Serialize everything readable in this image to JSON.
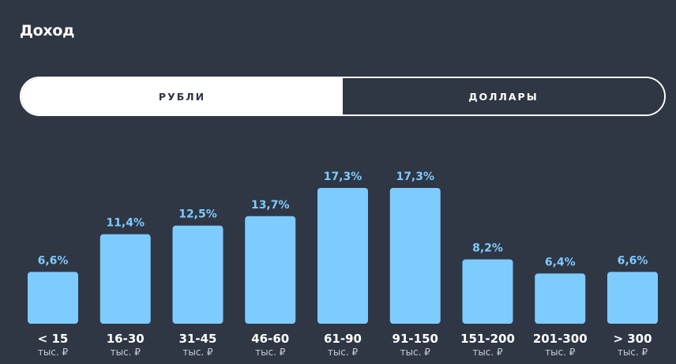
{
  "title": "Доход",
  "currency_toggle": {
    "options": [
      "РУБЛИ",
      "ДОЛЛАРЫ"
    ],
    "selected": "РУБЛИ"
  },
  "colors": {
    "background": "#2f3644",
    "bar": "#7ecbfd",
    "label": "#7ecbfd",
    "text": "#ffffff",
    "sublabel": "#c9ced6"
  },
  "chart_data": {
    "type": "bar",
    "categories": [
      "< 15",
      "16-30",
      "31-45",
      "46-60",
      "61-90",
      "91-150",
      "151-200",
      "201-300",
      "> 300"
    ],
    "category_unit": "тыс. ₽",
    "values": [
      6.6,
      11.4,
      12.5,
      13.7,
      17.3,
      17.3,
      8.2,
      6.4,
      6.6
    ],
    "data_labels": [
      "6,6%",
      "11,4%",
      "12,5%",
      "13,7%",
      "17,3%",
      "17,3%",
      "8,2%",
      "6,4%",
      "6,6%"
    ],
    "unit": "%",
    "title": "",
    "xlabel": "",
    "ylabel": "",
    "ylim": [
      0,
      17.3
    ],
    "grid": false,
    "legend": "none"
  }
}
